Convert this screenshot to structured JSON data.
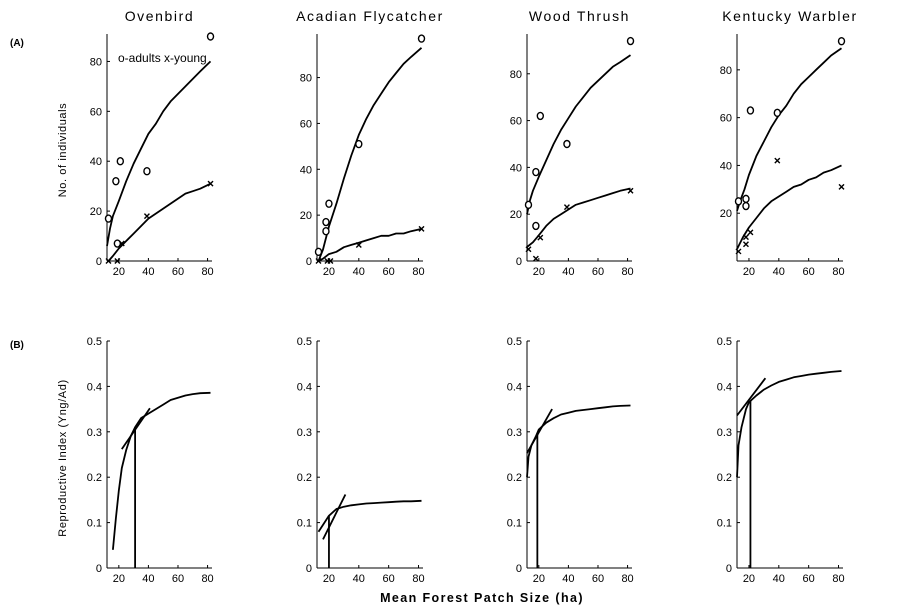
{
  "figure": {
    "row_labels": [
      "(A)",
      "(B)"
    ],
    "legend": "o-adults x-young",
    "ylabel_top": "No. of individuals",
    "ylabel_bottom": "Reproductive Index (Yng/Ad)",
    "xlabel": "Mean Forest Patch Size (ha)"
  },
  "chart_data": [
    {
      "type": "scatter",
      "title": "Ovenbird",
      "row": "A",
      "xticks": [
        20,
        40,
        60,
        80
      ],
      "yticks": [
        0,
        20,
        40,
        60,
        80
      ],
      "xlim": [
        12,
        83
      ],
      "ylim": [
        0,
        91
      ],
      "series": [
        {
          "name": "adults",
          "marker": "o",
          "points": [
            [
              13,
              17
            ],
            [
              18,
              32
            ],
            [
              19,
              7
            ],
            [
              21,
              40
            ],
            [
              39,
              36
            ],
            [
              82,
              90
            ]
          ]
        },
        {
          "name": "young",
          "marker": "x",
          "points": [
            [
              13,
              0
            ],
            [
              19,
              0
            ],
            [
              22,
              7
            ],
            [
              39,
              18
            ],
            [
              82,
              31
            ]
          ]
        }
      ],
      "curves": [
        {
          "name": "adults",
          "points": [
            [
              12,
              6
            ],
            [
              14,
              13
            ],
            [
              16,
              18
            ],
            [
              20,
              24
            ],
            [
              25,
              32
            ],
            [
              30,
              39
            ],
            [
              35,
              45
            ],
            [
              40,
              51
            ],
            [
              45,
              55
            ],
            [
              50,
              60
            ],
            [
              55,
              64
            ],
            [
              60,
              67
            ],
            [
              65,
              70
            ],
            [
              70,
              73
            ],
            [
              75,
              76
            ],
            [
              82,
              80
            ]
          ]
        },
        {
          "name": "young",
          "points": [
            [
              13,
              0
            ],
            [
              16,
              2
            ],
            [
              20,
              5
            ],
            [
              25,
              8
            ],
            [
              30,
              11
            ],
            [
              35,
              14
            ],
            [
              40,
              17
            ],
            [
              45,
              19
            ],
            [
              50,
              21
            ],
            [
              55,
              23
            ],
            [
              60,
              25
            ],
            [
              65,
              27
            ],
            [
              70,
              28
            ],
            [
              75,
              29
            ],
            [
              82,
              31
            ]
          ]
        }
      ]
    },
    {
      "type": "scatter",
      "title": "Acadian Flycatcher",
      "row": "A",
      "xticks": [
        20,
        40,
        60,
        80
      ],
      "yticks": [
        0,
        20,
        40,
        60,
        80
      ],
      "xlim": [
        12,
        83
      ],
      "ylim": [
        0,
        99
      ],
      "series": [
        {
          "name": "adults",
          "marker": "o",
          "points": [
            [
              13,
              4
            ],
            [
              18,
              13
            ],
            [
              18,
              17
            ],
            [
              20,
              25
            ],
            [
              40,
              51
            ],
            [
              82,
              97
            ]
          ]
        },
        {
          "name": "young",
          "marker": "x",
          "points": [
            [
              13,
              0
            ],
            [
              19,
              0
            ],
            [
              21,
              0
            ],
            [
              40,
              7
            ],
            [
              82,
              14
            ]
          ]
        }
      ],
      "curves": [
        {
          "name": "adults",
          "points": [
            [
              13,
              0
            ],
            [
              16,
              5
            ],
            [
              20,
              15
            ],
            [
              25,
              25
            ],
            [
              30,
              36
            ],
            [
              35,
              46
            ],
            [
              40,
              55
            ],
            [
              45,
              62
            ],
            [
              50,
              68
            ],
            [
              55,
              73
            ],
            [
              60,
              78
            ],
            [
              65,
              82
            ],
            [
              70,
              86
            ],
            [
              75,
              89
            ],
            [
              82,
              93
            ]
          ]
        },
        {
          "name": "young",
          "points": [
            [
              13,
              0
            ],
            [
              16,
              1
            ],
            [
              20,
              3
            ],
            [
              25,
              4
            ],
            [
              30,
              6
            ],
            [
              35,
              7
            ],
            [
              40,
              8
            ],
            [
              45,
              9
            ],
            [
              50,
              10
            ],
            [
              55,
              11
            ],
            [
              60,
              11
            ],
            [
              65,
              12
            ],
            [
              70,
              12
            ],
            [
              75,
              13
            ],
            [
              82,
              14
            ]
          ]
        }
      ]
    },
    {
      "type": "scatter",
      "title": "Wood Thrush",
      "row": "A",
      "xticks": [
        20,
        40,
        60,
        80
      ],
      "yticks": [
        0,
        20,
        40,
        60,
        80
      ],
      "xlim": [
        12,
        83
      ],
      "ylim": [
        0,
        97
      ],
      "series": [
        {
          "name": "adults",
          "marker": "o",
          "points": [
            [
              13,
              24
            ],
            [
              18,
              38
            ],
            [
              18,
              15
            ],
            [
              21,
              62
            ],
            [
              39,
              50
            ],
            [
              82,
              94
            ]
          ]
        },
        {
          "name": "young",
          "marker": "x",
          "points": [
            [
              13,
              5
            ],
            [
              18,
              1
            ],
            [
              21,
              10
            ],
            [
              39,
              23
            ],
            [
              82,
              30
            ]
          ]
        }
      ],
      "curves": [
        {
          "name": "adults",
          "points": [
            [
              12,
              20
            ],
            [
              14,
              26
            ],
            [
              16,
              30
            ],
            [
              20,
              36
            ],
            [
              25,
              43
            ],
            [
              30,
              50
            ],
            [
              35,
              56
            ],
            [
              40,
              61
            ],
            [
              45,
              66
            ],
            [
              50,
              70
            ],
            [
              55,
              74
            ],
            [
              60,
              77
            ],
            [
              65,
              80
            ],
            [
              70,
              83
            ],
            [
              75,
              85
            ],
            [
              82,
              88
            ]
          ]
        },
        {
          "name": "young",
          "points": [
            [
              12,
              6
            ],
            [
              16,
              8
            ],
            [
              20,
              11
            ],
            [
              25,
              15
            ],
            [
              30,
              18
            ],
            [
              35,
              20
            ],
            [
              40,
              22
            ],
            [
              45,
              24
            ],
            [
              50,
              25
            ],
            [
              55,
              26
            ],
            [
              60,
              27
            ],
            [
              65,
              28
            ],
            [
              70,
              29
            ],
            [
              75,
              30
            ],
            [
              82,
              31
            ]
          ]
        }
      ]
    },
    {
      "type": "scatter",
      "title": "Kentucky Warbler",
      "row": "A",
      "xticks": [
        20,
        40,
        60,
        80
      ],
      "yticks": [
        20,
        40,
        60,
        80
      ],
      "xlim": [
        12,
        83
      ],
      "ylim": [
        0,
        95
      ],
      "series": [
        {
          "name": "adults",
          "marker": "o",
          "points": [
            [
              13,
              25
            ],
            [
              18,
              26
            ],
            [
              18,
              23
            ],
            [
              21,
              63
            ],
            [
              39,
              62
            ],
            [
              82,
              92
            ]
          ]
        },
        {
          "name": "young",
          "marker": "x",
          "points": [
            [
              13,
              4
            ],
            [
              18,
              10
            ],
            [
              18,
              7
            ],
            [
              21,
              12
            ],
            [
              39,
              42
            ],
            [
              82,
              31
            ]
          ]
        }
      ],
      "curves": [
        {
          "name": "adults",
          "points": [
            [
              12,
              21
            ],
            [
              14,
              25
            ],
            [
              17,
              30
            ],
            [
              20,
              36
            ],
            [
              25,
              44
            ],
            [
              30,
              50
            ],
            [
              35,
              56
            ],
            [
              40,
              61
            ],
            [
              45,
              65
            ],
            [
              50,
              70
            ],
            [
              55,
              74
            ],
            [
              60,
              77
            ],
            [
              65,
              80
            ],
            [
              70,
              83
            ],
            [
              75,
              86
            ],
            [
              82,
              89
            ]
          ]
        },
        {
          "name": "young",
          "points": [
            [
              12,
              5
            ],
            [
              16,
              10
            ],
            [
              20,
              14
            ],
            [
              25,
              18
            ],
            [
              30,
              22
            ],
            [
              35,
              25
            ],
            [
              40,
              27
            ],
            [
              45,
              29
            ],
            [
              50,
              31
            ],
            [
              55,
              32
            ],
            [
              60,
              34
            ],
            [
              65,
              35
            ],
            [
              70,
              37
            ],
            [
              75,
              38
            ],
            [
              82,
              40
            ]
          ]
        }
      ]
    },
    {
      "type": "line",
      "row": "B",
      "xticks": [
        20,
        40,
        60,
        80
      ],
      "yticks": [
        0,
        0.1,
        0.2,
        0.3,
        0.4,
        0.5
      ],
      "xlim": [
        12,
        83
      ],
      "ylim": [
        0,
        0.5
      ],
      "curve": [
        [
          16,
          0.04
        ],
        [
          18,
          0.11
        ],
        [
          20,
          0.17
        ],
        [
          22,
          0.22
        ],
        [
          25,
          0.26
        ],
        [
          28,
          0.29
        ],
        [
          31,
          0.31
        ],
        [
          35,
          0.33
        ],
        [
          40,
          0.34
        ],
        [
          45,
          0.35
        ],
        [
          50,
          0.36
        ],
        [
          55,
          0.37
        ],
        [
          60,
          0.375
        ],
        [
          65,
          0.38
        ],
        [
          70,
          0.383
        ],
        [
          75,
          0.385
        ],
        [
          82,
          0.386
        ]
      ],
      "tangent": [
        [
          22,
          0.262
        ],
        [
          41,
          0.352
        ]
      ],
      "threshold_x": 31
    },
    {
      "type": "line",
      "row": "B",
      "xticks": [
        20,
        40,
        60,
        80
      ],
      "yticks": [
        0,
        0.1,
        0.2,
        0.3,
        0.4,
        0.5
      ],
      "xlim": [
        12,
        83
      ],
      "ylim": [
        0,
        0.5
      ],
      "curve": [
        [
          13,
          0.08
        ],
        [
          16,
          0.095
        ],
        [
          20,
          0.115
        ],
        [
          25,
          0.13
        ],
        [
          30,
          0.135
        ],
        [
          35,
          0.138
        ],
        [
          40,
          0.14
        ],
        [
          45,
          0.142
        ],
        [
          50,
          0.143
        ],
        [
          55,
          0.144
        ],
        [
          60,
          0.145
        ],
        [
          65,
          0.146
        ],
        [
          70,
          0.147
        ],
        [
          75,
          0.147
        ],
        [
          82,
          0.148
        ]
      ],
      "tangent": [
        [
          16,
          0.063
        ],
        [
          31,
          0.162
        ]
      ],
      "threshold_x": 20
    },
    {
      "type": "line",
      "row": "B",
      "xticks": [
        20,
        40,
        60,
        80
      ],
      "yticks": [
        0,
        0.1,
        0.2,
        0.3,
        0.4,
        0.5
      ],
      "xlim": [
        12,
        83
      ],
      "ylim": [
        0,
        0.5
      ],
      "curve": [
        [
          12,
          0.2
        ],
        [
          13,
          0.245
        ],
        [
          15,
          0.27
        ],
        [
          18,
          0.29
        ],
        [
          20,
          0.305
        ],
        [
          25,
          0.32
        ],
        [
          30,
          0.33
        ],
        [
          35,
          0.338
        ],
        [
          40,
          0.342
        ],
        [
          45,
          0.346
        ],
        [
          50,
          0.348
        ],
        [
          55,
          0.35
        ],
        [
          60,
          0.352
        ],
        [
          65,
          0.354
        ],
        [
          70,
          0.356
        ],
        [
          75,
          0.357
        ],
        [
          82,
          0.358
        ]
      ],
      "tangent": [
        [
          12,
          0.253
        ],
        [
          29,
          0.35
        ]
      ],
      "threshold_x": 19
    },
    {
      "type": "line",
      "row": "B",
      "xticks": [
        20,
        40,
        60,
        80
      ],
      "yticks": [
        0,
        0.1,
        0.2,
        0.3,
        0.4,
        0.5
      ],
      "xlim": [
        12,
        83
      ],
      "ylim": [
        0,
        0.5
      ],
      "curve": [
        [
          12,
          0.2
        ],
        [
          13,
          0.27
        ],
        [
          15,
          0.31
        ],
        [
          18,
          0.35
        ],
        [
          20,
          0.365
        ],
        [
          25,
          0.38
        ],
        [
          30,
          0.393
        ],
        [
          35,
          0.402
        ],
        [
          40,
          0.41
        ],
        [
          45,
          0.415
        ],
        [
          50,
          0.42
        ],
        [
          55,
          0.423
        ],
        [
          60,
          0.426
        ],
        [
          65,
          0.428
        ],
        [
          70,
          0.43
        ],
        [
          75,
          0.432
        ],
        [
          82,
          0.434
        ]
      ],
      "tangent": [
        [
          12,
          0.336
        ],
        [
          31,
          0.418
        ]
      ],
      "threshold_x": 21
    }
  ]
}
